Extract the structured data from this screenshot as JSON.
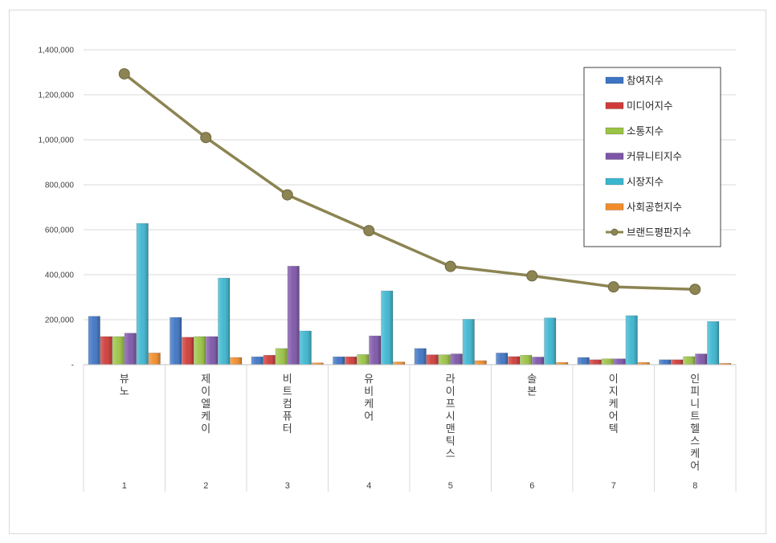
{
  "chart_data": {
    "type": "bar",
    "categories": [
      "뷰노",
      "제이엘케이",
      "비트컴퓨터",
      "유비케어",
      "라이프시맨틱스",
      "솔본",
      "이지케어텍",
      "인피니트헬스케어"
    ],
    "group_labels": [
      "1",
      "2",
      "3",
      "4",
      "5",
      "6",
      "7",
      "8"
    ],
    "ylim": [
      0,
      1400000
    ],
    "yticks": [
      0,
      200000,
      400000,
      600000,
      800000,
      1000000,
      1200000,
      1400000
    ],
    "ytick_labels": [
      "-",
      "200,000",
      "400,000",
      "600,000",
      "800,000",
      "1,000,000",
      "1,200,000",
      "1,400,000"
    ],
    "grid": true,
    "legend_position": "top-right",
    "series": [
      {
        "name": "참여지수",
        "kind": "bar",
        "color": "#3e74c4",
        "values": [
          215000,
          210000,
          35000,
          35000,
          72000,
          52000,
          32000,
          22000
        ]
      },
      {
        "name": "미디어지수",
        "kind": "bar",
        "color": "#cf3b38",
        "values": [
          125000,
          122000,
          42000,
          35000,
          44000,
          36000,
          22000,
          22000
        ]
      },
      {
        "name": "소통지수",
        "kind": "bar",
        "color": "#9bc345",
        "values": [
          125000,
          125000,
          72000,
          45000,
          44000,
          42000,
          26000,
          36000
        ]
      },
      {
        "name": "커뮤니티지수",
        "kind": "bar",
        "color": "#7d55a8",
        "values": [
          140000,
          125000,
          438000,
          128000,
          48000,
          34000,
          26000,
          48000
        ]
      },
      {
        "name": "시장지수",
        "kind": "bar",
        "color": "#3cb6d0",
        "values": [
          628000,
          385000,
          150000,
          328000,
          202000,
          208000,
          218000,
          192000
        ]
      },
      {
        "name": "사회공헌지수",
        "kind": "bar",
        "color": "#f28c2a",
        "values": [
          52000,
          32000,
          8000,
          12000,
          18000,
          10000,
          10000,
          6000
        ]
      },
      {
        "name": "브랜드평판지수",
        "kind": "line",
        "color": "#8c8452",
        "values": [
          1293000,
          1010000,
          755000,
          596000,
          437000,
          395000,
          346000,
          335000
        ]
      }
    ]
  }
}
